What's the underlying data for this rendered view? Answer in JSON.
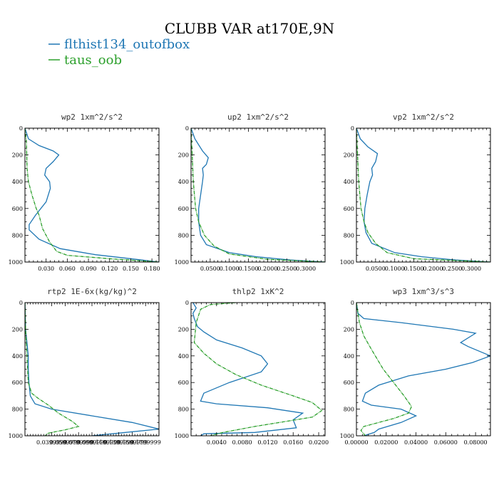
{
  "figure": {
    "title": "CLUBB VAR at170E,9N",
    "legend": [
      {
        "name": "flthist134_outofbox",
        "color": "#1f77b4"
      },
      {
        "name": "taus_oob",
        "color": "#2ca02c"
      }
    ]
  },
  "chart_data": [
    {
      "type": "line",
      "title": "wp2  1xm^2/s^2",
      "xlim": [
        0,
        0.19
      ],
      "ylim": [
        1000,
        0
      ],
      "xtick_values": [
        0.03,
        0.06,
        0.09,
        0.12,
        0.15,
        0.18
      ],
      "xtick_labels": [
        "0.030",
        "0.060",
        "0.090",
        "0.120",
        "0.150",
        "0.180"
      ],
      "ytick_values": [
        0,
        200,
        400,
        600,
        800,
        1000
      ],
      "ytick_labels": [
        "0",
        "200",
        "400",
        "600",
        "800",
        "1000"
      ],
      "series": [
        {
          "name": "flthist134_outofbox",
          "color": "#1f77b4",
          "x": [
            0,
            0.005,
            0.02,
            0.04,
            0.048,
            0.04,
            0.03,
            0.028,
            0.035,
            0.036,
            0.03,
            0.015,
            0.006,
            0.006,
            0.02,
            0.05,
            0.1,
            0.15,
            0.19
          ],
          "y": [
            0,
            80,
            130,
            170,
            200,
            250,
            300,
            350,
            400,
            450,
            550,
            650,
            720,
            760,
            830,
            900,
            945,
            975,
            1000
          ]
        },
        {
          "name": "taus_oob",
          "color": "#2ca02c",
          "x": [
            0,
            0.002,
            0.003,
            0.005,
            0.01,
            0.016,
            0.02,
            0.025,
            0.035,
            0.045,
            0.06,
            0.12,
            0.19
          ],
          "y": [
            0,
            100,
            300,
            400,
            500,
            600,
            650,
            750,
            850,
            920,
            950,
            975,
            1000
          ]
        }
      ]
    },
    {
      "type": "line",
      "title": "up2  1xm^2/s^2",
      "xlim": [
        0,
        0.35
      ],
      "ylim": [
        1000,
        0
      ],
      "xtick_values": [
        0.05,
        0.1,
        0.15,
        0.2,
        0.25,
        0.3
      ],
      "xtick_labels": [
        "0.0500",
        "0.1000",
        "0.1500",
        "0.2000",
        "0.2500",
        "0.3000"
      ],
      "ytick_values": [
        0,
        200,
        400,
        600,
        800,
        1000
      ],
      "ytick_labels": [
        "0",
        "200",
        "400",
        "600",
        "800",
        "1000"
      ],
      "series": [
        {
          "name": "flthist134_outofbox",
          "color": "#1f77b4",
          "x": [
            0,
            0.01,
            0.03,
            0.045,
            0.04,
            0.03,
            0.032,
            0.03,
            0.025,
            0.02,
            0.02,
            0.025,
            0.04,
            0.1,
            0.17,
            0.26,
            0.35
          ],
          "y": [
            0,
            80,
            170,
            220,
            270,
            300,
            350,
            400,
            500,
            600,
            700,
            800,
            870,
            930,
            960,
            985,
            1000
          ]
        },
        {
          "name": "taus_oob",
          "color": "#2ca02c",
          "x": [
            0,
            0.003,
            0.006,
            0.012,
            0.02,
            0.035,
            0.06,
            0.1,
            0.2,
            0.35
          ],
          "y": [
            0,
            200,
            400,
            600,
            700,
            800,
            880,
            940,
            980,
            1000
          ]
        }
      ]
    },
    {
      "type": "line",
      "title": "vp2  1xm^2/s^2",
      "xlim": [
        0,
        0.35
      ],
      "ylim": [
        1000,
        0
      ],
      "xtick_values": [
        0.05,
        0.1,
        0.15,
        0.2,
        0.25,
        0.3
      ],
      "xtick_labels": [
        "0.0500",
        "0.1000",
        "0.1500",
        "0.2000",
        "0.2500",
        "0.3000"
      ],
      "ytick_values": [
        0,
        200,
        400,
        600,
        800,
        1000
      ],
      "ytick_labels": [
        "0",
        "200",
        "400",
        "600",
        "800",
        "1000"
      ],
      "series": [
        {
          "name": "flthist134_outofbox",
          "color": "#1f77b4",
          "x": [
            0,
            0.01,
            0.03,
            0.055,
            0.05,
            0.04,
            0.042,
            0.035,
            0.028,
            0.022,
            0.02,
            0.025,
            0.04,
            0.1,
            0.17,
            0.26,
            0.35
          ],
          "y": [
            0,
            80,
            140,
            190,
            250,
            300,
            350,
            400,
            500,
            600,
            700,
            780,
            860,
            930,
            960,
            985,
            1000
          ]
        },
        {
          "name": "taus_oob",
          "color": "#2ca02c",
          "x": [
            0,
            0.003,
            0.006,
            0.012,
            0.02,
            0.03,
            0.05,
            0.08,
            0.15,
            0.35
          ],
          "y": [
            0,
            200,
            400,
            600,
            700,
            780,
            860,
            930,
            975,
            1000
          ]
        }
      ]
    },
    {
      "type": "line",
      "title": "rtp2  1E-6x(kg/kg)^2",
      "xlim": [
        0,
        0.2
      ],
      "ylim": [
        1000,
        0
      ],
      "xtick_values": [
        0.04,
        0.06,
        0.08,
        0.1,
        0.12,
        0.14,
        0.16,
        0.18
      ],
      "xtick_labels": [
        "0.0399999",
        "0.0599999",
        "0.0799999",
        "0.0999999",
        "0.1199999",
        "0.1399999",
        "0.1599999",
        "0.1799999"
      ],
      "ytick_values": [
        0,
        200,
        400,
        600,
        800,
        1000
      ],
      "ytick_labels": [
        "0",
        "200",
        "400",
        "600",
        "800",
        "1000"
      ],
      "series": [
        {
          "name": "flthist134_outofbox",
          "color": "#1f77b4",
          "x": [
            0,
            0.001,
            0.003,
            0.005,
            0.005,
            0.006,
            0.008,
            0.015,
            0.04,
            0.1,
            0.16,
            0.2,
            0.15,
            0.1
          ],
          "y": [
            0,
            200,
            300,
            400,
            500,
            600,
            700,
            760,
            800,
            850,
            900,
            950,
            975,
            1000
          ]
        },
        {
          "name": "taus_oob",
          "color": "#2ca02c",
          "x": [
            0,
            0.001,
            0.003,
            0.005,
            0.01,
            0.02,
            0.035,
            0.05,
            0.07,
            0.08,
            0.06,
            0.035,
            0.03
          ],
          "y": [
            0,
            200,
            400,
            600,
            680,
            720,
            770,
            830,
            890,
            930,
            955,
            980,
            1000
          ]
        }
      ]
    },
    {
      "type": "line",
      "title": "thlp2  1xK^2",
      "xlim": [
        0,
        0.021
      ],
      "ylim": [
        1000,
        0
      ],
      "xtick_values": [
        0.004,
        0.008,
        0.012,
        0.016,
        0.02
      ],
      "xtick_labels": [
        "0.0040",
        "0.0080",
        "0.0120",
        "0.0160",
        "0.0200"
      ],
      "ytick_values": [
        0,
        200,
        400,
        600,
        800,
        1000
      ],
      "ytick_labels": [
        "0",
        "200",
        "400",
        "600",
        "800",
        "1000"
      ],
      "series": [
        {
          "name": "flthist134_outofbox",
          "color": "#1f77b4",
          "x": [
            0.0003,
            0.0008,
            0.0003,
            0.0005,
            0.001,
            0.002,
            0.004,
            0.008,
            0.011,
            0.012,
            0.011,
            0.006,
            0.002,
            0.0015,
            0.004,
            0.012,
            0.0175,
            0.016,
            0.0165,
            0.01,
            0.002,
            0.0015
          ],
          "y": [
            0,
            40,
            80,
            120,
            180,
            220,
            280,
            340,
            400,
            460,
            520,
            600,
            680,
            740,
            760,
            790,
            830,
            880,
            940,
            975,
            985,
            1000
          ]
        },
        {
          "name": "taus_oob",
          "color": "#2ca02c",
          "x": [
            0.007,
            0.003,
            0.0015,
            0.0008,
            0.0005,
            0.002,
            0.004,
            0.007,
            0.011,
            0.016,
            0.019,
            0.0205,
            0.019,
            0.01,
            0.005,
            0.003
          ],
          "y": [
            0,
            15,
            50,
            150,
            300,
            380,
            460,
            540,
            620,
            700,
            750,
            810,
            860,
            930,
            975,
            1000
          ]
        }
      ]
    },
    {
      "type": "line",
      "title": "wp3  1xm^3/s^3",
      "xlim": [
        0,
        0.09
      ],
      "ylim": [
        1000,
        0
      ],
      "xtick_values": [
        0,
        0.02,
        0.04,
        0.06,
        0.08
      ],
      "xtick_labels": [
        "0.00000",
        "0.02000",
        "0.04000",
        "0.06000",
        "0.08000"
      ],
      "ytick_values": [
        0,
        200,
        400,
        600,
        800,
        1000
      ],
      "ytick_labels": [
        "0",
        "200",
        "400",
        "600",
        "800",
        "1000"
      ],
      "series": [
        {
          "name": "flthist134_outofbox",
          "color": "#1f77b4",
          "x": [
            0,
            0.001,
            0.005,
            0.03,
            0.065,
            0.08,
            0.07,
            0.075,
            0.09,
            0.078,
            0.06,
            0.035,
            0.015,
            0.006,
            0.004,
            0.01,
            0.03,
            0.04,
            0.03,
            0.015,
            0.012,
            0.005
          ],
          "y": [
            0,
            80,
            120,
            150,
            200,
            230,
            300,
            330,
            400,
            450,
            500,
            550,
            620,
            680,
            740,
            770,
            800,
            850,
            900,
            950,
            975,
            1000
          ]
        },
        {
          "name": "taus_oob",
          "color": "#2ca02c",
          "x": [
            0,
            0.002,
            0.005,
            0.01,
            0.018,
            0.025,
            0.032,
            0.037,
            0.035,
            0.025,
            0.005,
            0.003,
            0.006
          ],
          "y": [
            0,
            150,
            250,
            350,
            500,
            600,
            700,
            780,
            830,
            870,
            930,
            960,
            1000
          ]
        }
      ]
    }
  ]
}
